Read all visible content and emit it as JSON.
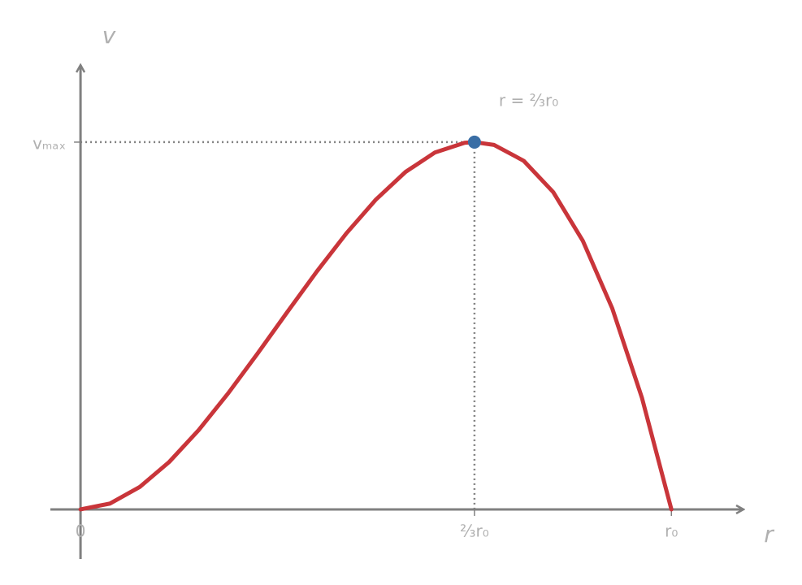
{
  "chart_data": {
    "type": "line",
    "x_label": "r",
    "y_label": "v",
    "xlim": [
      -0.051,
      1.122
    ],
    "ylim": [
      -0.135,
      1.21
    ],
    "xticks": [
      0,
      {
        "value": 0.6667,
        "label": "⅔r₀"
      },
      {
        "value": 1,
        "label": "r₀"
      }
    ],
    "yticks": [
      {
        "value": 1,
        "label": "vₘₐₓ"
      }
    ],
    "x": [
      0,
      0.05,
      0.1,
      0.15,
      0.2,
      0.25,
      0.3,
      0.35,
      0.4,
      0.45,
      0.5,
      0.55,
      0.6,
      0.65,
      0.6667,
      0.7,
      0.75,
      0.8,
      0.85,
      0.9,
      0.95,
      1
    ],
    "series": [
      {
        "color": "#c9353a",
        "values": [
          0,
          0.016,
          0.0608,
          0.1291,
          0.216,
          0.3164,
          0.4253,
          0.5375,
          0.648,
          0.7518,
          0.8438,
          0.9188,
          0.972,
          0.9982,
          1,
          0.9923,
          0.9492,
          0.864,
          0.7315,
          0.5468,
          0.3046,
          0
        ]
      }
    ],
    "marker": {
      "x": 0.6667,
      "y": 1,
      "color": "#3a6ea5",
      "annotation": "r = ⅔r₀"
    }
  }
}
